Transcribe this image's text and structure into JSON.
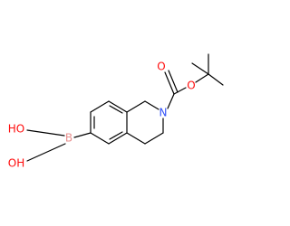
{
  "atoms": [
    {
      "label": "O"
    },
    {
      "label": "O"
    },
    {
      "label": "N"
    },
    {
      "label": "B"
    },
    {
      "label": "HO"
    },
    {
      "label": "OH"
    }
  ]
}
